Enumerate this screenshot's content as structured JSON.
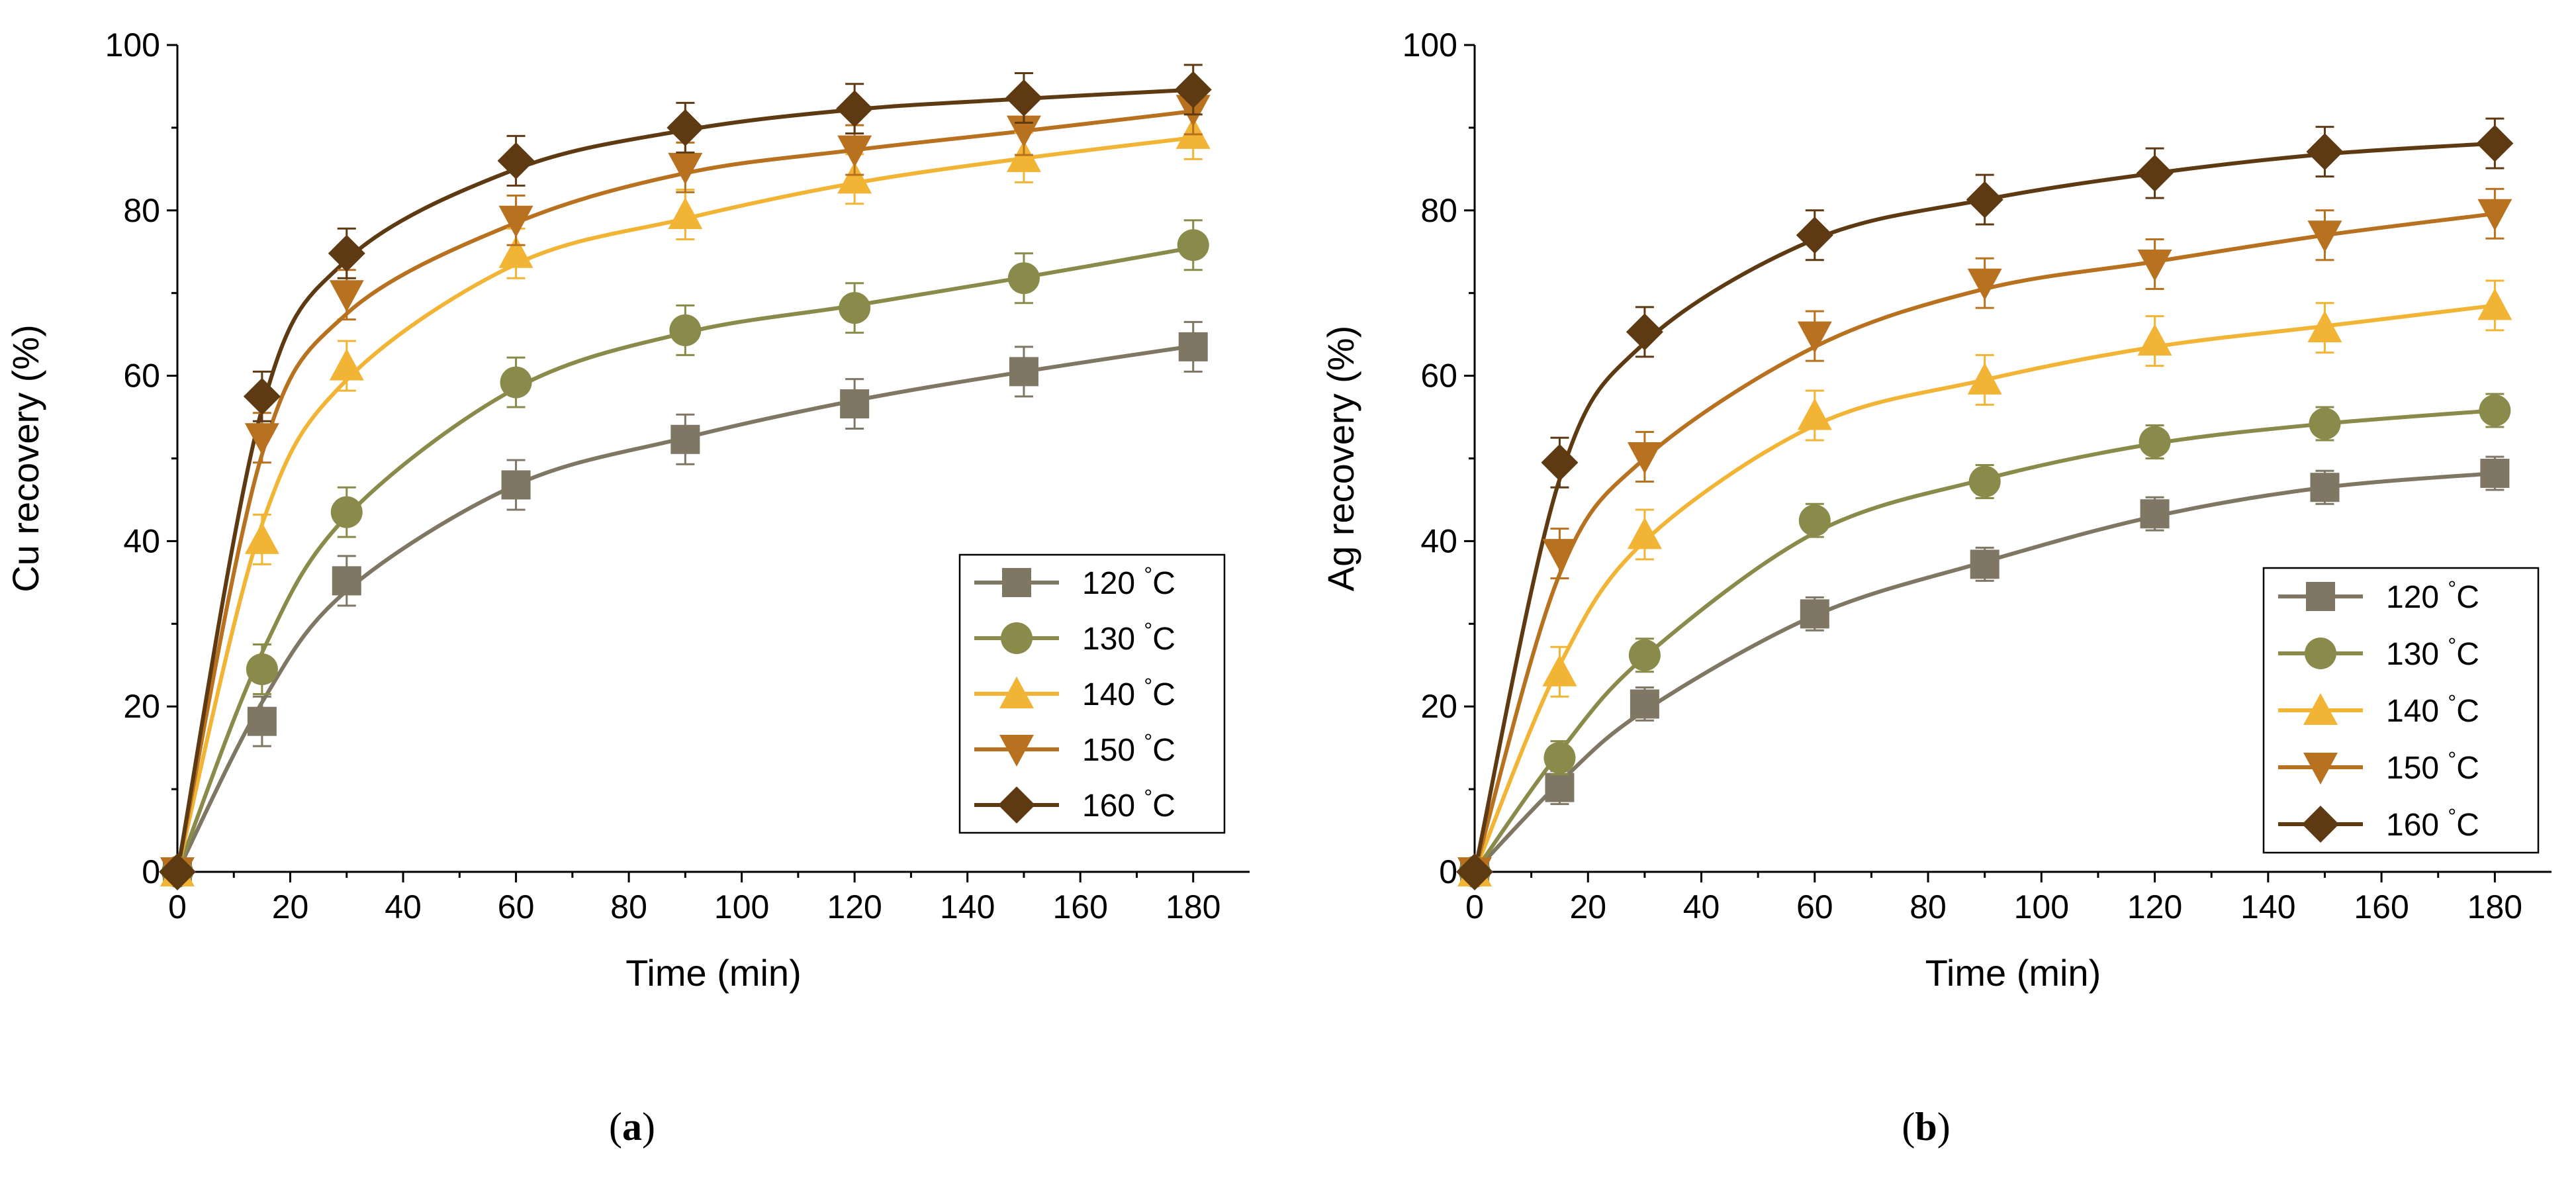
{
  "colors": {
    "120": "#7f7764",
    "130": "#8a8a4a",
    "140": "#f2b435",
    "150": "#b8711f",
    "160": "#5e3a12"
  },
  "chart_data": [
    {
      "type": "line",
      "panel_label": "a",
      "xlabel": "Time (min)",
      "ylabel": "Cu recovery (%)",
      "xlim": [
        0,
        190
      ],
      "ylim": [
        0,
        100
      ],
      "x_ticks": [
        0,
        20,
        40,
        60,
        80,
        100,
        120,
        140,
        160,
        180
      ],
      "y_ticks": [
        0,
        20,
        40,
        60,
        80,
        100
      ],
      "legend_position": "bottom-right",
      "x": [
        0,
        15,
        30,
        60,
        90,
        120,
        150,
        180
      ],
      "series": [
        {
          "name": "120 °C",
          "temp": "120",
          "marker": "square",
          "values": [
            0,
            18.2,
            35.2,
            46.8,
            52.3,
            56.6,
            60.5,
            63.5
          ],
          "error": [
            0,
            3,
            3,
            3,
            3,
            3,
            3,
            3
          ]
        },
        {
          "name": "130 °C",
          "temp": "130",
          "marker": "circle",
          "values": [
            0,
            24.5,
            43.5,
            59.2,
            65.5,
            68.2,
            71.8,
            75.8
          ],
          "error": [
            0,
            3,
            3,
            3,
            3,
            3,
            3,
            3
          ]
        },
        {
          "name": "140 °C",
          "temp": "140",
          "marker": "triangle-up",
          "values": [
            0,
            40.2,
            61.2,
            74.8,
            79.5,
            83.8,
            86.4,
            89.2
          ],
          "error": [
            0,
            3,
            3,
            3,
            3,
            3,
            3,
            3
          ]
        },
        {
          "name": "150 °C",
          "temp": "150",
          "marker": "triangle-down",
          "values": [
            0,
            52.5,
            69.8,
            78.8,
            85.2,
            87.3,
            89.7,
            92.2
          ],
          "error": [
            0,
            3,
            3,
            3,
            3,
            3,
            3,
            3
          ]
        },
        {
          "name": "160 °C",
          "temp": "160",
          "marker": "diamond",
          "values": [
            0,
            57.5,
            74.8,
            86.0,
            90.0,
            92.3,
            93.6,
            94.6
          ],
          "error": [
            0,
            3,
            3,
            3,
            3,
            3,
            3,
            3
          ]
        }
      ],
      "fitted_curves": [
        {
          "temp": "120",
          "values": [
            0,
            20.5,
            34.0,
            46.8,
            52.5,
            57.0,
            60.5,
            63.6
          ]
        },
        {
          "temp": "130",
          "values": [
            0,
            26.5,
            43.0,
            58.5,
            65.2,
            68.5,
            71.9,
            75.5
          ]
        },
        {
          "temp": "140",
          "values": [
            0,
            42.0,
            59.5,
            73.5,
            79.0,
            83.3,
            86.3,
            88.8
          ]
        },
        {
          "temp": "150",
          "values": [
            0,
            50.5,
            67.5,
            78.5,
            84.5,
            87.3,
            89.6,
            92.0
          ]
        },
        {
          "temp": "160",
          "values": [
            0,
            56.0,
            74.0,
            85.0,
            89.7,
            92.2,
            93.5,
            94.6
          ]
        }
      ]
    },
    {
      "type": "line",
      "panel_label": "b",
      "xlabel": "Time (min)",
      "ylabel": "Ag recovery (%)",
      "xlim": [
        0,
        190
      ],
      "ylim": [
        0,
        100
      ],
      "x_ticks": [
        0,
        20,
        40,
        60,
        80,
        100,
        120,
        140,
        160,
        180
      ],
      "y_ticks": [
        0,
        20,
        40,
        60,
        80,
        100
      ],
      "legend_position": "bottom-right",
      "x": [
        0,
        15,
        30,
        60,
        90,
        120,
        150,
        180
      ],
      "series": [
        {
          "name": "120 °C",
          "temp": "120",
          "marker": "square",
          "values": [
            0,
            10.2,
            20.3,
            31.2,
            37.2,
            43.3,
            46.5,
            48.2
          ],
          "error": [
            0,
            2,
            2,
            2,
            2,
            2,
            2,
            2
          ]
        },
        {
          "name": "130 °C",
          "temp": "130",
          "marker": "circle",
          "values": [
            0,
            13.8,
            26.2,
            42.5,
            47.2,
            52.0,
            54.2,
            55.8
          ],
          "error": [
            0,
            2,
            2,
            2,
            2,
            2,
            2,
            2
          ]
        },
        {
          "name": "140 °C",
          "temp": "140",
          "marker": "triangle-up",
          "values": [
            0,
            24.2,
            40.8,
            55.2,
            59.5,
            64.2,
            65.8,
            68.5
          ],
          "error": [
            0,
            3,
            3,
            3,
            3,
            3,
            3,
            3
          ]
        },
        {
          "name": "150 °C",
          "temp": "150",
          "marker": "triangle-down",
          "values": [
            0,
            38.5,
            50.2,
            64.8,
            71.2,
            73.5,
            77.0,
            79.6
          ],
          "error": [
            0,
            3,
            3,
            3,
            3,
            3,
            3,
            3
          ]
        },
        {
          "name": "160 °C",
          "temp": "160",
          "marker": "diamond",
          "values": [
            0,
            49.5,
            65.3,
            77.0,
            81.3,
            84.5,
            87.1,
            88.1
          ],
          "error": [
            0,
            3,
            3,
            3,
            3,
            3,
            3,
            3
          ]
        }
      ],
      "fitted_curves": [
        {
          "temp": "120",
          "values": [
            0,
            10.8,
            19.5,
            31.0,
            37.5,
            43.0,
            46.5,
            48.2
          ]
        },
        {
          "temp": "130",
          "values": [
            0,
            14.5,
            26.0,
            41.0,
            47.5,
            51.8,
            54.2,
            55.8
          ]
        },
        {
          "temp": "140",
          "values": [
            0,
            25.0,
            40.0,
            54.0,
            59.5,
            63.5,
            66.0,
            68.5
          ]
        },
        {
          "temp": "150",
          "values": [
            0,
            36.0,
            50.0,
            63.5,
            70.5,
            73.8,
            77.0,
            79.6
          ]
        },
        {
          "temp": "160",
          "values": [
            0,
            47.5,
            64.0,
            76.5,
            81.3,
            84.5,
            86.8,
            88.1
          ]
        }
      ]
    }
  ]
}
